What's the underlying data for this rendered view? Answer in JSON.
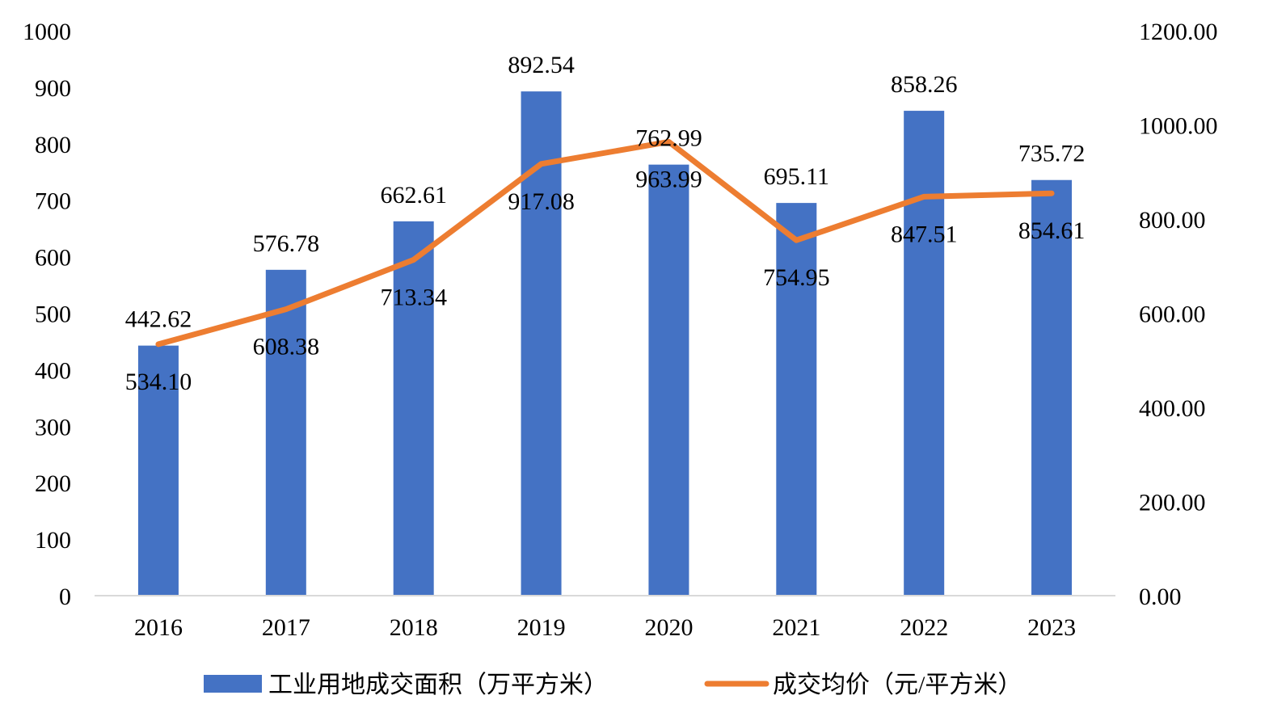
{
  "chart_data": {
    "type": "bar",
    "categories": [
      "2016",
      "2017",
      "2018",
      "2019",
      "2020",
      "2021",
      "2022",
      "2023"
    ],
    "series": [
      {
        "name": "工业用地成交面积（万平方米）",
        "type": "bar",
        "axis": "left",
        "values": [
          442.62,
          576.78,
          662.61,
          892.54,
          762.99,
          695.11,
          858.26,
          735.72
        ],
        "labels": [
          "442.62",
          "576.78",
          "662.61",
          "892.54",
          "762.99",
          "695.11",
          "858.26",
          "735.72"
        ],
        "color": "#4472C4"
      },
      {
        "name": "成交均价（元/平方米）",
        "type": "line",
        "axis": "right",
        "values": [
          534.1,
          608.38,
          713.34,
          917.08,
          963.99,
          754.95,
          847.51,
          854.61
        ],
        "labels": [
          "534.10",
          "608.38",
          "713.34",
          "917.08",
          "963.99",
          "754.95",
          "847.51",
          "854.61"
        ],
        "color": "#ED7D31"
      }
    ],
    "y_left": {
      "ylim": [
        0,
        1000
      ],
      "ticks": [
        "0",
        "100",
        "200",
        "300",
        "400",
        "500",
        "600",
        "700",
        "800",
        "900",
        "1000"
      ]
    },
    "y_right": {
      "ylim": [
        0,
        1200
      ],
      "ticks": [
        "0.00",
        "200.00",
        "400.00",
        "600.00",
        "800.00",
        "1000.00",
        "1200.00"
      ]
    },
    "grid": false,
    "legend": "bottom"
  }
}
